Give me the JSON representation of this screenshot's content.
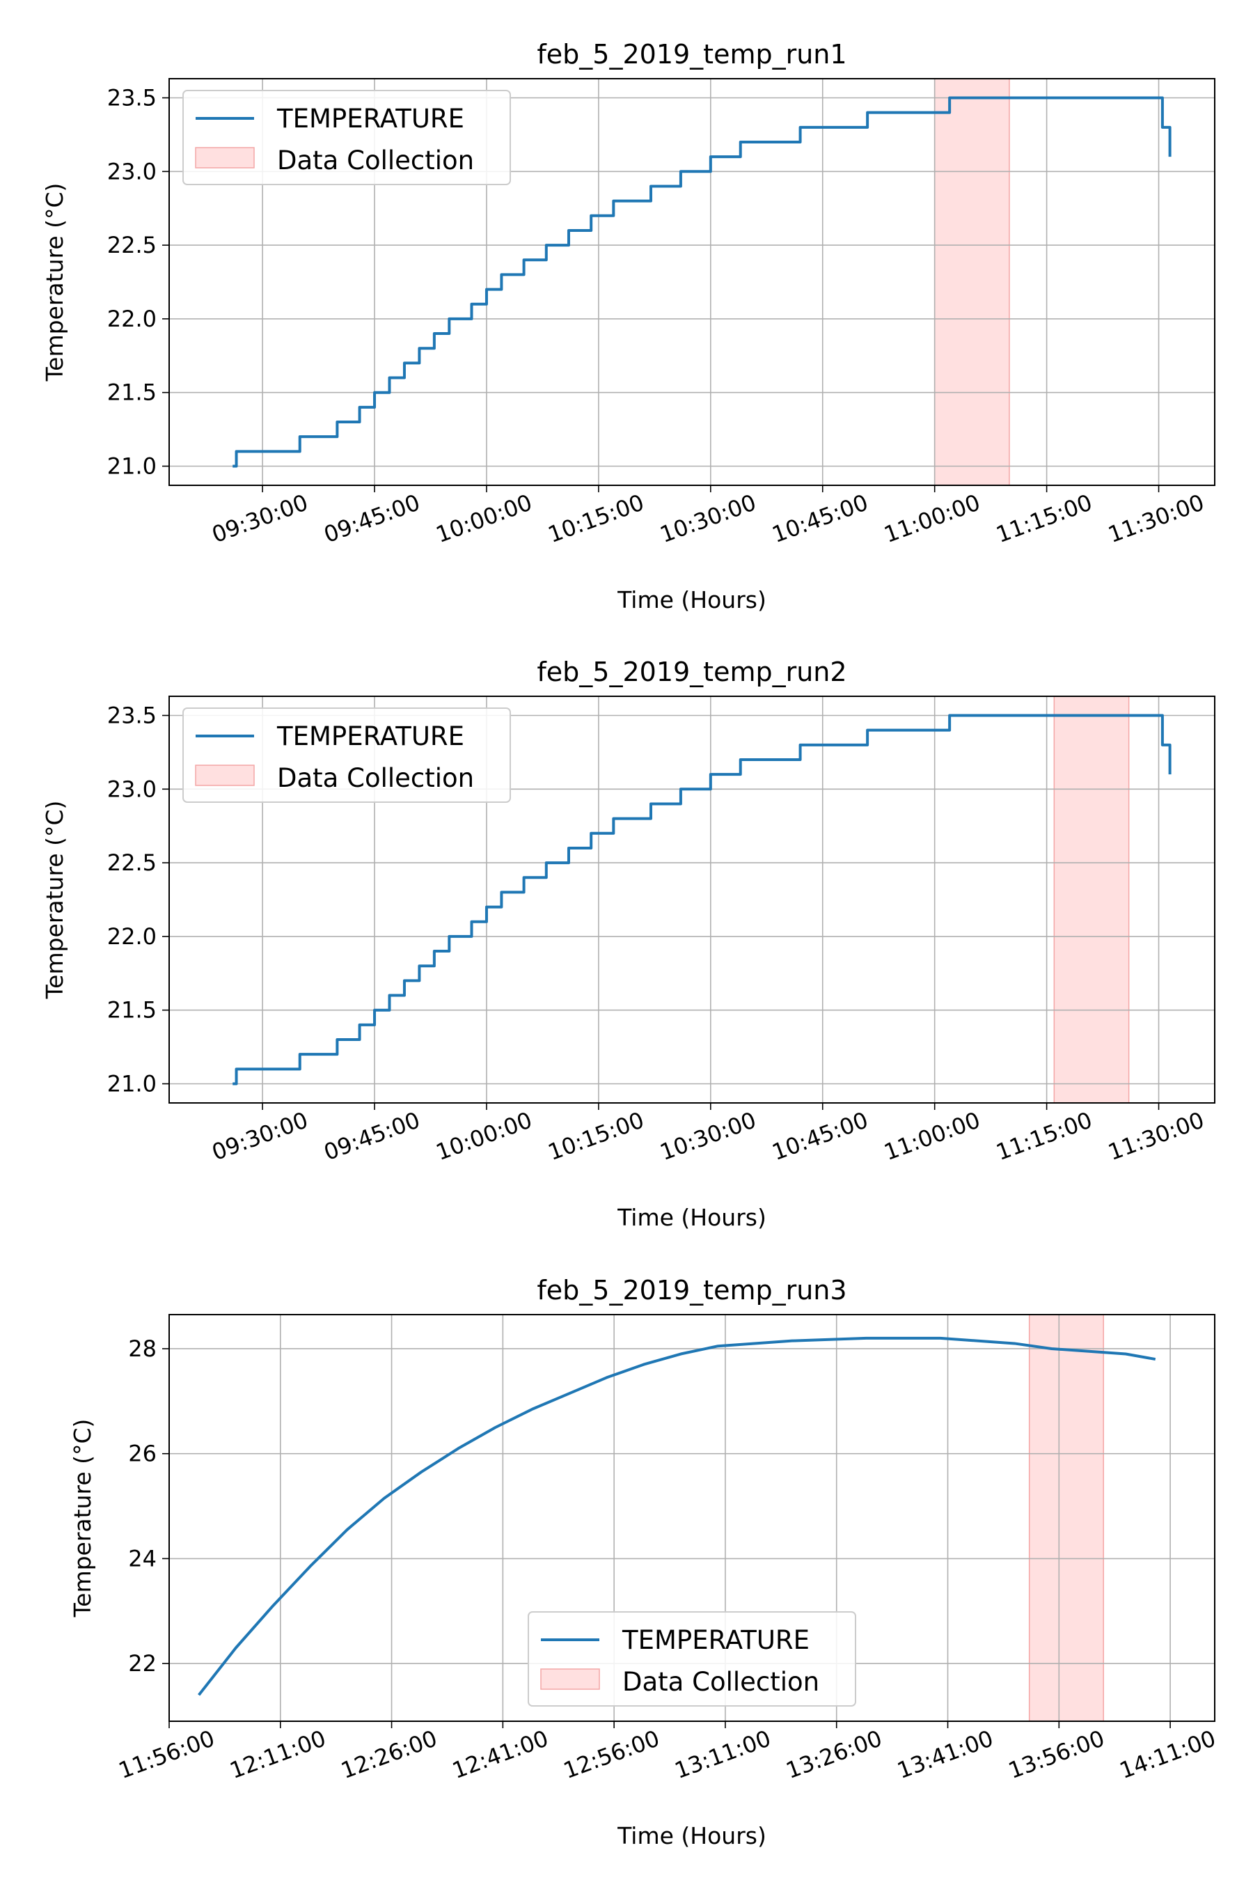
{
  "chart_data": [
    {
      "type": "line",
      "title": "feb_5_2019_temp_run1",
      "xlabel": "Time (Hours)",
      "ylabel": "Temperature (°C)",
      "x_ticks": [
        "09:30:00",
        "09:45:00",
        "10:00:00",
        "10:15:00",
        "10:30:00",
        "10:45:00",
        "11:00:00",
        "11:15:00",
        "11:30:00"
      ],
      "y_ticks": [
        "21.0",
        "21.5",
        "22.0",
        "22.5",
        "23.0",
        "23.5"
      ],
      "xlim": [
        "09:17:30",
        "11:37:30"
      ],
      "ylim": [
        20.87,
        23.63
      ],
      "grid": true,
      "legend": {
        "location": "upper left",
        "entries": [
          "TEMPERATURE",
          "Data Collection"
        ]
      },
      "series": [
        {
          "name": "TEMPERATURE",
          "color": "#1f77b4",
          "style": "step",
          "points": [
            [
              "09:26:00",
              21.0
            ],
            [
              "09:26:30",
              21.1
            ],
            [
              "09:35:00",
              21.2
            ],
            [
              "09:40:00",
              21.3
            ],
            [
              "09:43:00",
              21.4
            ],
            [
              "09:45:00",
              21.5
            ],
            [
              "09:47:00",
              21.6
            ],
            [
              "09:49:00",
              21.7
            ],
            [
              "09:51:00",
              21.8
            ],
            [
              "09:53:00",
              21.9
            ],
            [
              "09:55:00",
              22.0
            ],
            [
              "09:58:00",
              22.1
            ],
            [
              "10:00:00",
              22.2
            ],
            [
              "10:02:00",
              22.3
            ],
            [
              "10:05:00",
              22.4
            ],
            [
              "10:08:00",
              22.5
            ],
            [
              "10:11:00",
              22.6
            ],
            [
              "10:14:00",
              22.7
            ],
            [
              "10:17:00",
              22.8
            ],
            [
              "10:22:00",
              22.9
            ],
            [
              "10:26:00",
              23.0
            ],
            [
              "10:30:00",
              23.1
            ],
            [
              "10:34:00",
              23.2
            ],
            [
              "10:42:00",
              23.3
            ],
            [
              "10:51:00",
              23.4
            ],
            [
              "11:02:00",
              23.5
            ],
            [
              "11:28:00",
              23.5
            ],
            [
              "11:30:30",
              23.3
            ],
            [
              "11:31:30",
              23.1
            ]
          ]
        }
      ],
      "spans": [
        {
          "name": "Data Collection",
          "color": "#ffcccc",
          "x0": "11:00:00",
          "x1": "11:10:00"
        }
      ]
    },
    {
      "type": "line",
      "title": "feb_5_2019_temp_run2",
      "xlabel": "Time (Hours)",
      "ylabel": "Temperature (°C)",
      "x_ticks": [
        "09:30:00",
        "09:45:00",
        "10:00:00",
        "10:15:00",
        "10:30:00",
        "10:45:00",
        "11:00:00",
        "11:15:00",
        "11:30:00"
      ],
      "y_ticks": [
        "21.0",
        "21.5",
        "22.0",
        "22.5",
        "23.0",
        "23.5"
      ],
      "xlim": [
        "09:17:30",
        "11:37:30"
      ],
      "ylim": [
        20.87,
        23.63
      ],
      "grid": true,
      "legend": {
        "location": "upper left",
        "entries": [
          "TEMPERATURE",
          "Data Collection"
        ]
      },
      "series": [
        {
          "name": "TEMPERATURE",
          "color": "#1f77b4",
          "style": "step",
          "points": [
            [
              "09:26:00",
              21.0
            ],
            [
              "09:26:30",
              21.1
            ],
            [
              "09:35:00",
              21.2
            ],
            [
              "09:40:00",
              21.3
            ],
            [
              "09:43:00",
              21.4
            ],
            [
              "09:45:00",
              21.5
            ],
            [
              "09:47:00",
              21.6
            ],
            [
              "09:49:00",
              21.7
            ],
            [
              "09:51:00",
              21.8
            ],
            [
              "09:53:00",
              21.9
            ],
            [
              "09:55:00",
              22.0
            ],
            [
              "09:58:00",
              22.1
            ],
            [
              "10:00:00",
              22.2
            ],
            [
              "10:02:00",
              22.3
            ],
            [
              "10:05:00",
              22.4
            ],
            [
              "10:08:00",
              22.5
            ],
            [
              "10:11:00",
              22.6
            ],
            [
              "10:14:00",
              22.7
            ],
            [
              "10:17:00",
              22.8
            ],
            [
              "10:22:00",
              22.9
            ],
            [
              "10:26:00",
              23.0
            ],
            [
              "10:30:00",
              23.1
            ],
            [
              "10:34:00",
              23.2
            ],
            [
              "10:42:00",
              23.3
            ],
            [
              "10:51:00",
              23.4
            ],
            [
              "11:02:00",
              23.5
            ],
            [
              "11:28:00",
              23.5
            ],
            [
              "11:30:30",
              23.3
            ],
            [
              "11:31:30",
              23.1
            ]
          ]
        }
      ],
      "spans": [
        {
          "name": "Data Collection",
          "color": "#ffcccc",
          "x0": "11:16:00",
          "x1": "11:26:00"
        }
      ]
    },
    {
      "type": "line",
      "title": "feb_5_2019_temp_run3",
      "xlabel": "Time (Hours)",
      "ylabel": "Temperature (°C)",
      "x_ticks": [
        "11:56:00",
        "12:11:00",
        "12:26:00",
        "12:41:00",
        "12:56:00",
        "13:11:00",
        "13:26:00",
        "13:41:00",
        "13:56:00",
        "14:11:00"
      ],
      "y_ticks": [
        "22",
        "24",
        "26",
        "28"
      ],
      "xlim": [
        "11:56:00",
        "14:17:00"
      ],
      "ylim": [
        20.9,
        28.65
      ],
      "grid": true,
      "legend": {
        "location": "lower center",
        "entries": [
          "TEMPERATURE",
          "Data Collection"
        ]
      },
      "series": [
        {
          "name": "TEMPERATURE",
          "color": "#1f77b4",
          "style": "curve",
          "points": [
            [
              "12:00:00",
              21.4
            ],
            [
              "12:05:00",
              22.3
            ],
            [
              "12:10:00",
              23.1
            ],
            [
              "12:15:00",
              23.85
            ],
            [
              "12:20:00",
              24.55
            ],
            [
              "12:25:00",
              25.15
            ],
            [
              "12:30:00",
              25.65
            ],
            [
              "12:35:00",
              26.1
            ],
            [
              "12:40:00",
              26.5
            ],
            [
              "12:45:00",
              26.85
            ],
            [
              "12:50:00",
              27.15
            ],
            [
              "12:55:00",
              27.45
            ],
            [
              "13:00:00",
              27.7
            ],
            [
              "13:05:00",
              27.9
            ],
            [
              "13:10:00",
              28.05
            ],
            [
              "13:20:00",
              28.15
            ],
            [
              "13:30:00",
              28.2
            ],
            [
              "13:40:00",
              28.2
            ],
            [
              "13:50:00",
              28.1
            ],
            [
              "13:55:00",
              28.0
            ],
            [
              "14:05:00",
              27.9
            ],
            [
              "14:09:00",
              27.8
            ]
          ]
        }
      ],
      "spans": [
        {
          "name": "Data Collection",
          "color": "#ffcccc",
          "x0": "13:52:00",
          "x1": "14:02:00"
        }
      ]
    }
  ]
}
